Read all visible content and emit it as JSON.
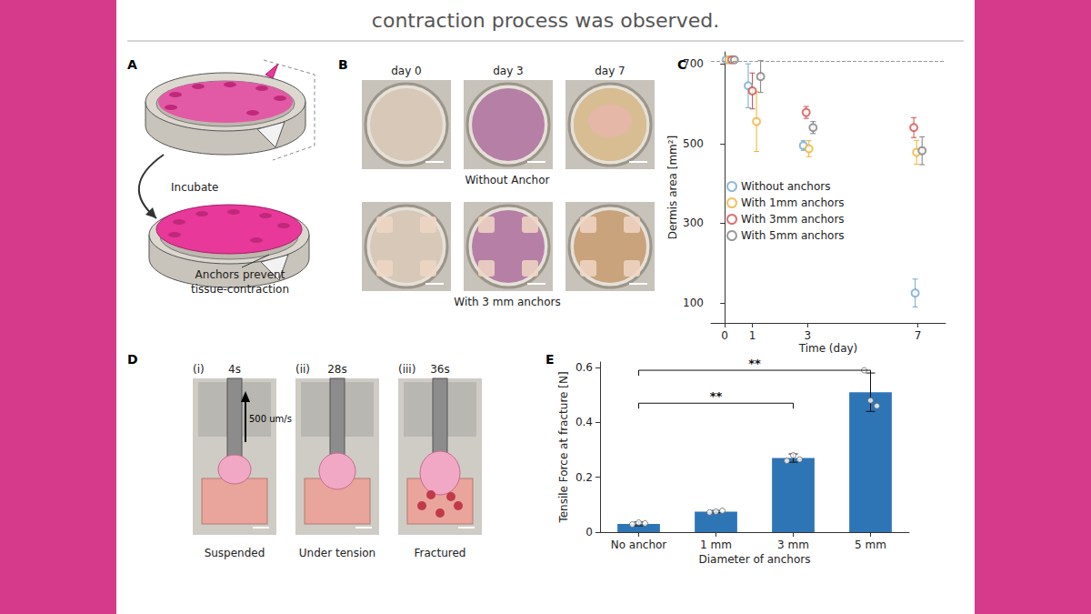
{
  "header": {
    "text": "contraction process was observed."
  },
  "panels": {
    "A": {
      "label": "A",
      "step": "Incubate",
      "note": [
        "Anchors prevent",
        "tissue-contraction"
      ]
    },
    "B": {
      "label": "B",
      "columns": [
        "day 0",
        "day 3",
        "day 7"
      ],
      "rows": [
        "Without Anchor",
        "With 3 mm anchors"
      ]
    },
    "C": {
      "label": "C"
    },
    "D": {
      "label": "D",
      "speed": "500 um/s",
      "frames": [
        {
          "index": "(i)",
          "time": "4s",
          "caption": "Suspended"
        },
        {
          "index": "(ii)",
          "time": "28s",
          "caption": "Under tension"
        },
        {
          "index": "(iii)",
          "time": "36s",
          "caption": "Fractured"
        }
      ]
    },
    "E": {
      "label": "E"
    }
  },
  "chart_data": [
    {
      "type": "scatter",
      "xlabel": "Time (day)",
      "ylabel": "Dermis area [mm²]",
      "xlim": [
        -0.5,
        8
      ],
      "xticks": [
        0,
        1,
        3,
        7
      ],
      "ylim": [
        50,
        730
      ],
      "yticks": [
        100,
        300,
        500,
        700
      ],
      "reference_line": 707,
      "grid": false,
      "legend": "center-left",
      "marker": "circle-open",
      "series": [
        {
          "name": "Without anchors",
          "color": "#74a9cf",
          "x": [
            0.05,
            0.85,
            2.85,
            6.9
          ],
          "values": [
            710,
            645,
            495,
            125
          ],
          "errors": [
            0,
            55,
            12,
            35
          ]
        },
        {
          "name": "With 1mm anchors",
          "color": "#f2b134",
          "x": [
            0.15,
            1.15,
            3.05,
            6.95
          ],
          "values": [
            710,
            555,
            487,
            478
          ],
          "errors": [
            0,
            75,
            20,
            30
          ]
        },
        {
          "name": "With 3mm anchors",
          "color": "#d0504f",
          "x": [
            0.25,
            1.0,
            2.95,
            6.85
          ],
          "values": [
            710,
            632,
            578,
            540
          ],
          "errors": [
            0,
            45,
            15,
            25
          ]
        },
        {
          "name": "With 5mm anchors",
          "color": "#7f7f7f",
          "x": [
            0.35,
            1.3,
            3.2,
            7.15
          ],
          "values": [
            710,
            668,
            540,
            482
          ],
          "errors": [
            0,
            40,
            15,
            35
          ]
        }
      ]
    },
    {
      "type": "bar",
      "xlabel": "Diameter of anchors",
      "ylabel": "Tensile Force at fracture [N]",
      "categories": [
        "No anchor",
        "1 mm",
        "3 mm",
        "5 mm"
      ],
      "values": [
        0.03,
        0.075,
        0.27,
        0.51
      ],
      "errors": [
        0.007,
        0.004,
        0.015,
        0.07
      ],
      "points": [
        [
          0.028,
          0.035,
          0.032
        ],
        [
          0.072,
          0.075,
          0.078
        ],
        [
          0.26,
          0.28,
          0.265
        ],
        [
          0.59,
          0.48,
          0.46
        ]
      ],
      "color": "#2e75b6",
      "ylim": [
        0,
        0.62
      ],
      "yticks": [
        0,
        0.2,
        0.4,
        0.6
      ],
      "grid": false,
      "significance": [
        {
          "from": "No anchor",
          "to": "3 mm",
          "y": 0.47,
          "label": "**"
        },
        {
          "from": "No anchor",
          "to": "5 mm",
          "y": 0.59,
          "label": "**"
        }
      ]
    }
  ]
}
